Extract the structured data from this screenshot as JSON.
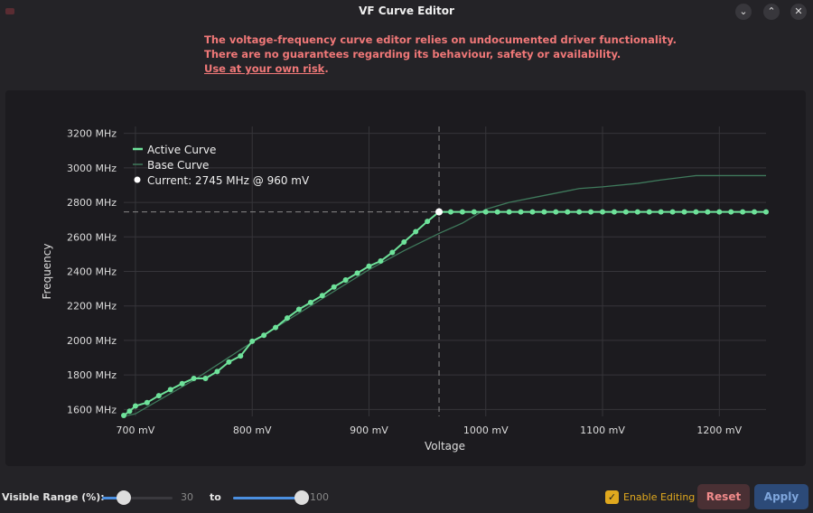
{
  "window": {
    "title": "VF Curve Editor",
    "buttons": [
      "minimize",
      "maximize",
      "close"
    ]
  },
  "warning": {
    "line1": "The voltage-frequency curve editor relies on undocumented driver functionality.",
    "line2": "There are no guarantees regarding its behaviour, safety or availability.",
    "line3_link": "Use at your own risk",
    "line3_suffix": ".",
    "color": "#f07878"
  },
  "chart_data": {
    "type": "line",
    "xlabel": "Voltage",
    "ylabel": "Frequency",
    "xlim": [
      690,
      1240
    ],
    "ylim": [
      1560,
      3240
    ],
    "xticks": [
      {
        "v": 700,
        "label": "700 mV"
      },
      {
        "v": 800,
        "label": "800 mV"
      },
      {
        "v": 900,
        "label": "900 mV"
      },
      {
        "v": 1000,
        "label": "1000 mV"
      },
      {
        "v": 1100,
        "label": "1100 mV"
      },
      {
        "v": 1200,
        "label": "1200 mV"
      }
    ],
    "yticks": [
      {
        "v": 1600,
        "label": "1600 MHz"
      },
      {
        "v": 1800,
        "label": "1800 MHz"
      },
      {
        "v": 2000,
        "label": "2000 MHz"
      },
      {
        "v": 2200,
        "label": "2200 MHz"
      },
      {
        "v": 2400,
        "label": "2400 MHz"
      },
      {
        "v": 2600,
        "label": "2600 MHz"
      },
      {
        "v": 2800,
        "label": "2800 MHz"
      },
      {
        "v": 3000,
        "label": "3000 MHz"
      },
      {
        "v": 3200,
        "label": "3200 MHz"
      }
    ],
    "grid": true,
    "legend_position": "top-left",
    "series": [
      {
        "name": "Active Curve",
        "color": "#6ee29a",
        "markers": true,
        "points": [
          [
            690,
            1565
          ],
          [
            695,
            1590
          ],
          [
            700,
            1620
          ],
          [
            710,
            1640
          ],
          [
            720,
            1680
          ],
          [
            730,
            1715
          ],
          [
            740,
            1750
          ],
          [
            750,
            1780
          ],
          [
            760,
            1780
          ],
          [
            770,
            1820
          ],
          [
            780,
            1875
          ],
          [
            790,
            1910
          ],
          [
            800,
            1995
          ],
          [
            810,
            2030
          ],
          [
            820,
            2075
          ],
          [
            830,
            2130
          ],
          [
            840,
            2180
          ],
          [
            850,
            2220
          ],
          [
            860,
            2260
          ],
          [
            870,
            2310
          ],
          [
            880,
            2350
          ],
          [
            890,
            2390
          ],
          [
            900,
            2430
          ],
          [
            910,
            2460
          ],
          [
            920,
            2510
          ],
          [
            930,
            2570
          ],
          [
            940,
            2630
          ],
          [
            950,
            2690
          ],
          [
            960,
            2745
          ],
          [
            970,
            2745
          ],
          [
            980,
            2745
          ],
          [
            990,
            2745
          ],
          [
            1000,
            2745
          ],
          [
            1010,
            2745
          ],
          [
            1020,
            2745
          ],
          [
            1030,
            2745
          ],
          [
            1040,
            2745
          ],
          [
            1050,
            2745
          ],
          [
            1060,
            2745
          ],
          [
            1070,
            2745
          ],
          [
            1080,
            2745
          ],
          [
            1090,
            2745
          ],
          [
            1100,
            2745
          ],
          [
            1110,
            2745
          ],
          [
            1120,
            2745
          ],
          [
            1130,
            2745
          ],
          [
            1140,
            2745
          ],
          [
            1150,
            2745
          ],
          [
            1160,
            2745
          ],
          [
            1170,
            2745
          ],
          [
            1180,
            2745
          ],
          [
            1190,
            2745
          ],
          [
            1200,
            2745
          ],
          [
            1210,
            2745
          ],
          [
            1220,
            2745
          ],
          [
            1230,
            2745
          ],
          [
            1240,
            2745
          ]
        ]
      },
      {
        "name": "Base Curve",
        "color": "#3f7a5c",
        "markers": false,
        "points": [
          [
            690,
            1560
          ],
          [
            700,
            1575
          ],
          [
            750,
            1770
          ],
          [
            800,
            1990
          ],
          [
            850,
            2200
          ],
          [
            900,
            2410
          ],
          [
            930,
            2520
          ],
          [
            960,
            2620
          ],
          [
            980,
            2680
          ],
          [
            1000,
            2760
          ],
          [
            1020,
            2800
          ],
          [
            1050,
            2840
          ],
          [
            1080,
            2880
          ],
          [
            1100,
            2890
          ],
          [
            1130,
            2910
          ],
          [
            1150,
            2930
          ],
          [
            1180,
            2955
          ],
          [
            1240,
            2955
          ]
        ]
      }
    ],
    "current": {
      "label": "Current: 2745 MHz @ 960 mV",
      "voltage": 960,
      "frequency": 2745
    }
  },
  "controls": {
    "range_label": "Visible Range (%):",
    "range_min": 30,
    "range_max": 100,
    "to_label": "to",
    "enable_editing": "Enable Editing",
    "enable_checked": true,
    "reset": "Reset",
    "apply": "Apply"
  }
}
